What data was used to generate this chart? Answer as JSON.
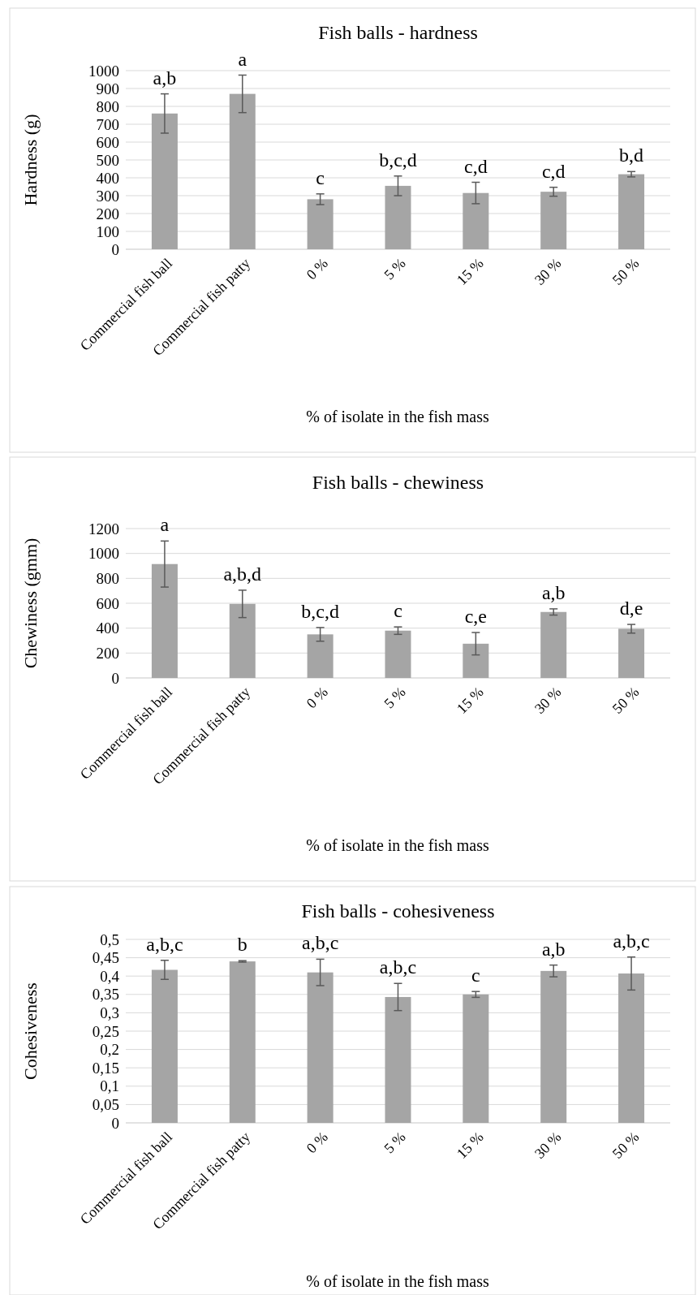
{
  "chart_data": [
    {
      "type": "bar",
      "title": "Fish balls - hardness",
      "xlabel": "% of isolate in the fish mass",
      "ylabel": "Hardness (g)",
      "categories": [
        "Commercial fish ball",
        "Commercial fish patty",
        "0 %",
        "5 %",
        "15 %",
        "30 %",
        "50 %"
      ],
      "color": "#a5a5a5",
      "values": [
        760,
        870,
        280,
        355,
        315,
        322,
        420
      ],
      "errors": [
        110,
        105,
        30,
        55,
        60,
        25,
        15
      ],
      "ylim": [
        0,
        1000
      ],
      "yticks": [
        0,
        100,
        200,
        300,
        400,
        500,
        600,
        700,
        800,
        900,
        1000
      ],
      "grid": "y",
      "annotations": [
        {
          "text": "a,b",
          "x": "Commercial fish ball",
          "y": 870
        },
        {
          "text": "a",
          "x": "Commercial fish patty",
          "y": 975
        },
        {
          "text": "c",
          "x": "0 %",
          "y": 310
        },
        {
          "text": "b,c,d",
          "x": "5 %",
          "y": 410
        },
        {
          "text": "c,d",
          "x": "15 %",
          "y": 375
        },
        {
          "text": "c,d",
          "x": "30 %",
          "y": 347
        },
        {
          "text": "b,d",
          "x": "50 %",
          "y": 435
        }
      ]
    },
    {
      "type": "bar",
      "title": "Fish balls - chewiness",
      "xlabel": "% of isolate in the fish mass",
      "ylabel": "Chewiness (gmm)",
      "categories": [
        "Commercial fish ball",
        "Commercial fish patty",
        "0 %",
        "5 %",
        "15 %",
        "30 %",
        "50 %"
      ],
      "color": "#a5a5a5",
      "values": [
        915,
        595,
        350,
        380,
        275,
        530,
        395
      ],
      "errors": [
        185,
        110,
        55,
        30,
        90,
        25,
        35
      ],
      "ylim": [
        0,
        1200
      ],
      "yticks": [
        0,
        200,
        400,
        600,
        800,
        1000,
        1200
      ],
      "grid": "y",
      "annotations": [
        {
          "text": "a",
          "x": "Commercial fish ball",
          "y": 1100
        },
        {
          "text": "a,b,d",
          "x": "Commercial fish patty",
          "y": 705
        },
        {
          "text": "b,c,d",
          "x": "0 %",
          "y": 405
        },
        {
          "text": "c",
          "x": "5 %",
          "y": 410
        },
        {
          "text": "c,e",
          "x": "15 %",
          "y": 365
        },
        {
          "text": "a,b",
          "x": "30 %",
          "y": 555
        },
        {
          "text": "d,e",
          "x": "50 %",
          "y": 430
        }
      ]
    },
    {
      "type": "bar",
      "title": "Fish balls - cohesiveness",
      "xlabel": "% of isolate in the fish mass",
      "ylabel": "Cohesiveness",
      "categories": [
        "Commercial fish ball",
        "Commercial fish patty",
        "0 %",
        "5 %",
        "15 %",
        "30 %",
        "50 %"
      ],
      "color": "#a5a5a5",
      "values": [
        0.417,
        0.44,
        0.41,
        0.343,
        0.35,
        0.414,
        0.407
      ],
      "errors": [
        0.026,
        0.002,
        0.036,
        0.037,
        0.008,
        0.016,
        0.045
      ],
      "ylim": [
        0,
        0.5
      ],
      "yticks": [
        {
          "value": 0,
          "label": "0"
        },
        {
          "value": 0.05,
          "label": "0,05"
        },
        {
          "value": 0.1,
          "label": "0,1"
        },
        {
          "value": 0.15,
          "label": "0,15"
        },
        {
          "value": 0.2,
          "label": "0,2"
        },
        {
          "value": 0.25,
          "label": "0,25"
        },
        {
          "value": 0.3,
          "label": "0,3"
        },
        {
          "value": 0.35,
          "label": "0,35"
        },
        {
          "value": 0.4,
          "label": "0,4"
        },
        {
          "value": 0.45,
          "label": "0,45"
        },
        {
          "value": 0.5,
          "label": "0,5"
        }
      ],
      "grid": "y",
      "annotations": [
        {
          "text": "a,b,c",
          "x": "Commercial fish ball",
          "y": 0.443
        },
        {
          "text": "b",
          "x": "Commercial fish patty",
          "y": 0.442
        },
        {
          "text": "a,b,c",
          "x": "0 %",
          "y": 0.446
        },
        {
          "text": "a,b,c",
          "x": "5 %",
          "y": 0.38
        },
        {
          "text": "c",
          "x": "15 %",
          "y": 0.358
        },
        {
          "text": "a,b",
          "x": "30 %",
          "y": 0.43
        },
        {
          "text": "a,b,c",
          "x": "50 %",
          "y": 0.452
        }
      ]
    }
  ]
}
